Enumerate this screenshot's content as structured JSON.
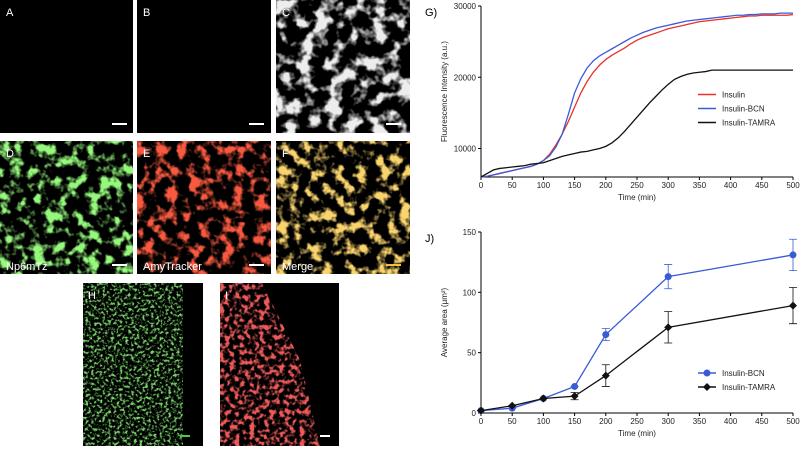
{
  "image_panels": [
    {
      "label": "A"
    },
    {
      "label": "B"
    },
    {
      "label": "C"
    },
    {
      "label": "D",
      "caption": "Np6mTz"
    },
    {
      "label": "E",
      "caption": "AmyTracker"
    },
    {
      "label": "F",
      "caption": "Merge"
    },
    {
      "label": "H"
    },
    {
      "label": "I"
    }
  ],
  "chart_data": [
    {
      "type": "line",
      "title": "G)",
      "x_label": "Time (min)",
      "y_label": "Fluorescence Intensity (a.u.)",
      "x": [
        0,
        10,
        20,
        30,
        40,
        50,
        60,
        70,
        80,
        90,
        100,
        110,
        120,
        130,
        140,
        150,
        160,
        170,
        180,
        190,
        200,
        210,
        220,
        230,
        240,
        250,
        260,
        270,
        280,
        290,
        300,
        310,
        320,
        330,
        340,
        350,
        360,
        370,
        380,
        390,
        400,
        410,
        420,
        430,
        440,
        450,
        460,
        470,
        480,
        490,
        500
      ],
      "xlim": [
        0,
        500
      ],
      "xticks": [
        0,
        50,
        100,
        150,
        200,
        250,
        300,
        350,
        400,
        450,
        500
      ],
      "ylim": [
        6000,
        30000
      ],
      "yticks": [
        10000,
        20000,
        30000
      ],
      "legend": "right",
      "series": [
        {
          "name": "Insulin",
          "color": "#e8322b",
          "values": [
            6000,
            6100,
            6300,
            6500,
            6700,
            6900,
            7100,
            7300,
            7500,
            7800,
            8300,
            9200,
            10500,
            12000,
            13800,
            15800,
            17800,
            19400,
            20700,
            21700,
            22500,
            23100,
            23600,
            24100,
            24700,
            25200,
            25600,
            25900,
            26200,
            26500,
            26800,
            27000,
            27200,
            27400,
            27600,
            27800,
            27900,
            28000,
            28100,
            28200,
            28300,
            28400,
            28500,
            28600,
            28600,
            28700,
            28700,
            28700,
            28700,
            28700,
            28800
          ]
        },
        {
          "name": "Insulin-BCN",
          "color": "#3a5bd6",
          "values": [
            6000,
            6100,
            6300,
            6500,
            6700,
            6900,
            7100,
            7300,
            7500,
            7800,
            8300,
            9000,
            10200,
            12000,
            14800,
            17800,
            19800,
            21300,
            22300,
            23000,
            23500,
            24000,
            24500,
            25000,
            25500,
            25900,
            26300,
            26600,
            26900,
            27100,
            27300,
            27500,
            27700,
            27900,
            28000,
            28100,
            28200,
            28300,
            28400,
            28500,
            28600,
            28700,
            28700,
            28800,
            28800,
            28900,
            28900,
            28900,
            29000,
            29000,
            29000
          ]
        },
        {
          "name": "Insulin-TAMRA",
          "color": "#111111",
          "values": [
            6000,
            6500,
            7000,
            7200,
            7300,
            7400,
            7500,
            7600,
            7800,
            7900,
            8000,
            8300,
            8600,
            8900,
            9100,
            9300,
            9500,
            9600,
            9800,
            10000,
            10300,
            10800,
            11500,
            12400,
            13400,
            14400,
            15400,
            16400,
            17300,
            18200,
            19000,
            19700,
            20100,
            20400,
            20600,
            20700,
            20800,
            21000,
            21000,
            21000,
            21000,
            21000,
            21000,
            21000,
            21000,
            21000,
            21000,
            21000,
            21000,
            21000,
            21000
          ]
        }
      ]
    },
    {
      "type": "line",
      "title": "J)",
      "x_label": "Time (min)",
      "y_label": "Average area (μm²)",
      "x": [
        0,
        50,
        100,
        150,
        200,
        300,
        500
      ],
      "xlim": [
        0,
        500
      ],
      "xticks": [
        0,
        50,
        100,
        150,
        200,
        250,
        300,
        350,
        400,
        450,
        500
      ],
      "ylim": [
        0,
        150
      ],
      "yticks": [
        0,
        50,
        100,
        150
      ],
      "legend": "lower right",
      "series": [
        {
          "name": "Insulin-BCN",
          "color": "#3a5bd6",
          "marker": "circle",
          "values": [
            2,
            4,
            12,
            22,
            65,
            113,
            131
          ],
          "errors": [
            0,
            0,
            0,
            0,
            5,
            10,
            13
          ]
        },
        {
          "name": "Insulin-TAMRA",
          "color": "#111111",
          "marker": "diamond",
          "values": [
            2,
            6,
            12,
            14,
            31,
            71,
            89
          ],
          "errors": [
            0,
            0,
            0,
            3,
            9,
            13,
            15
          ]
        }
      ]
    }
  ]
}
